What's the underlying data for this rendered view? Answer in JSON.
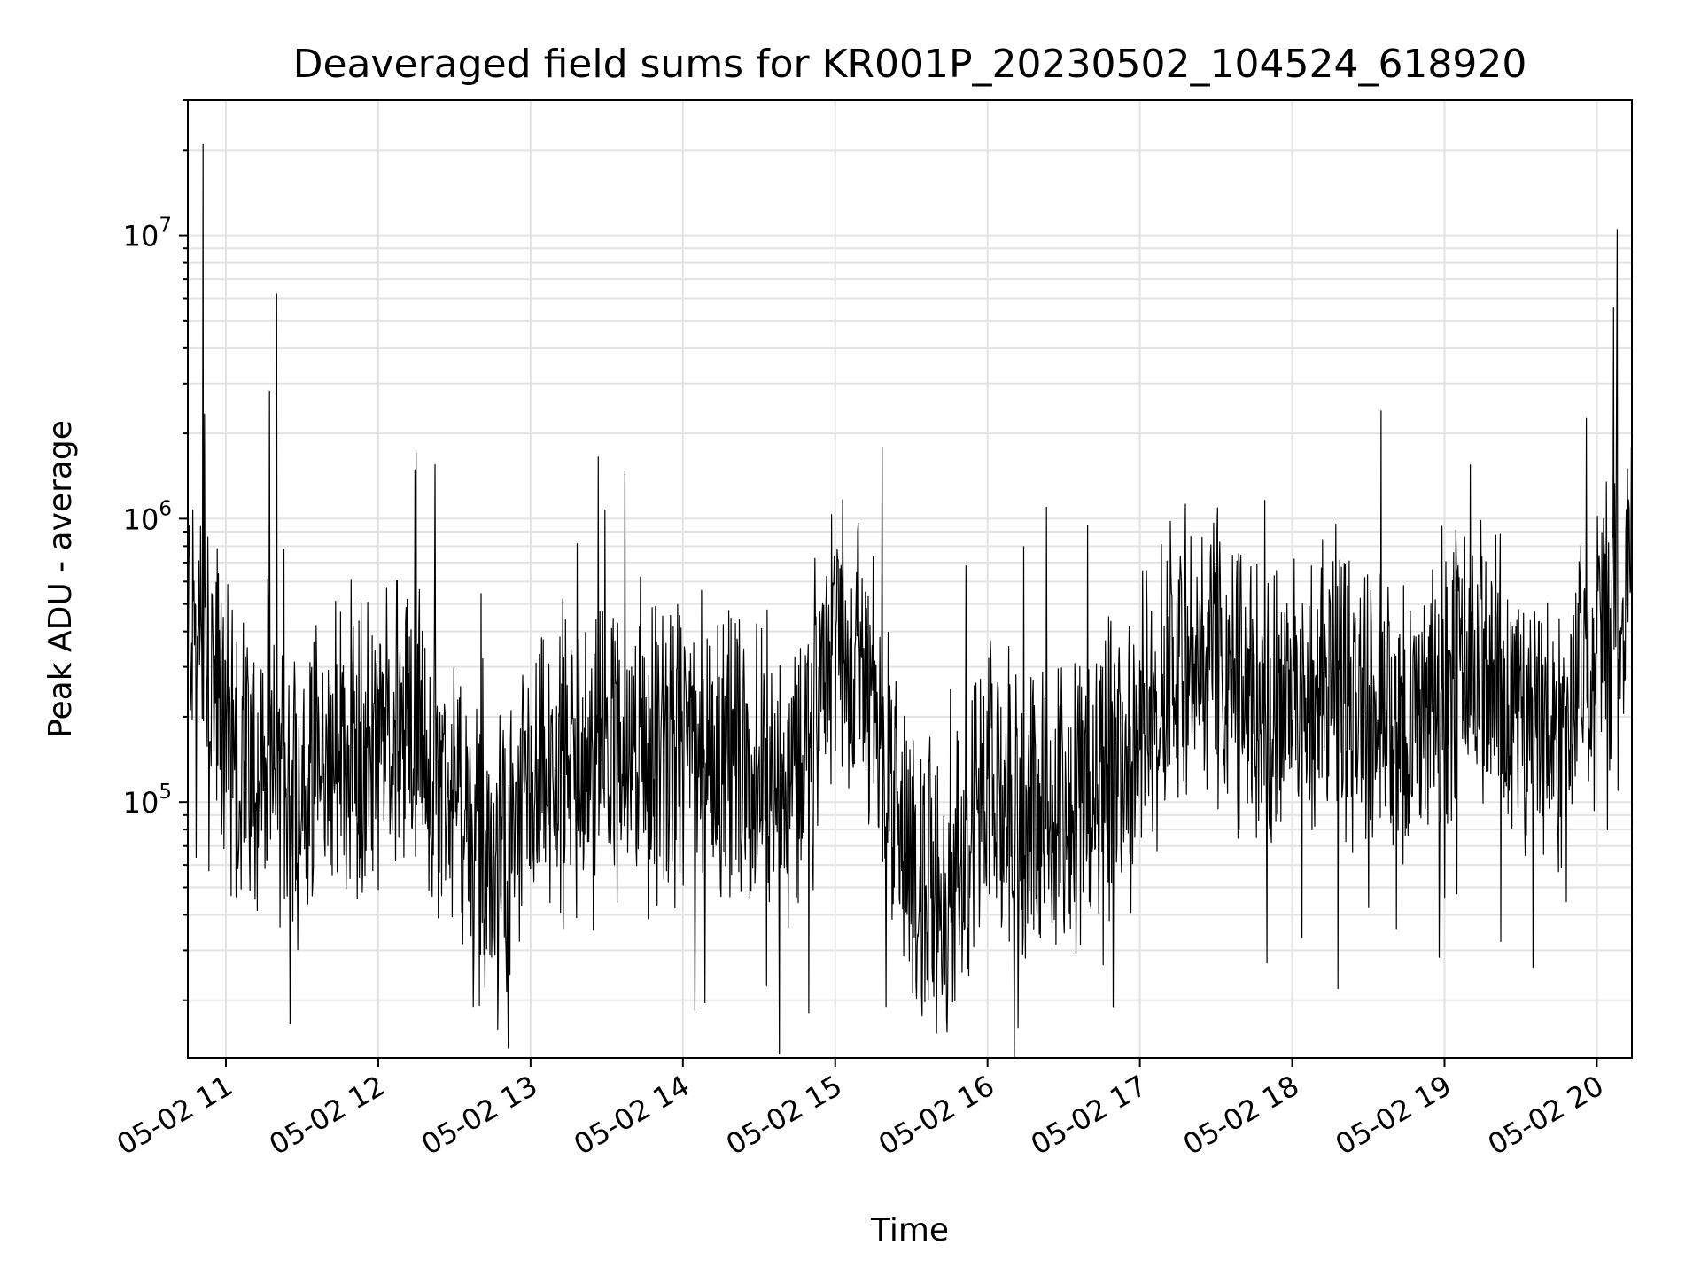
{
  "chart_data": {
    "type": "line",
    "title": "Deaveraged field sums for KR001P_20230502_104524_618920",
    "xlabel": "Time",
    "ylabel": "Peak ADU - average",
    "yscale": "log",
    "ylim": [
      12500,
      30000000
    ],
    "xlim_hours": [
      10.75,
      20.23
    ],
    "grid": true,
    "legend": "none",
    "line_color": "#000000",
    "x_ticks": [
      {
        "label": "05-02 11",
        "hour": 11
      },
      {
        "label": "05-02 12",
        "hour": 12
      },
      {
        "label": "05-02 13",
        "hour": 13
      },
      {
        "label": "05-02 14",
        "hour": 14
      },
      {
        "label": "05-02 15",
        "hour": 15
      },
      {
        "label": "05-02 16",
        "hour": 16
      },
      {
        "label": "05-02 17",
        "hour": 17
      },
      {
        "label": "05-02 18",
        "hour": 18
      },
      {
        "label": "05-02 19",
        "hour": 19
      },
      {
        "label": "05-02 20",
        "hour": 20
      }
    ],
    "y_ticks": [
      {
        "base": "10",
        "exp": "5",
        "value": 100000
      },
      {
        "base": "10",
        "exp": "6",
        "value": 1000000
      },
      {
        "base": "10",
        "exp": "7",
        "value": 10000000
      }
    ],
    "x": [
      "05-02 10:45",
      "05-02 11:00",
      "05-02 11:15",
      "05-02 11:30",
      "05-02 11:45",
      "05-02 12:00",
      "05-02 12:15",
      "05-02 12:30",
      "05-02 12:45",
      "05-02 13:00",
      "05-02 13:15",
      "05-02 13:30",
      "05-02 13:45",
      "05-02 14:00",
      "05-02 14:15",
      "05-02 14:30",
      "05-02 14:45",
      "05-02 15:00",
      "05-02 15:15",
      "05-02 15:30",
      "05-02 15:45",
      "05-02 16:00",
      "05-02 16:15",
      "05-02 16:30",
      "05-02 16:45",
      "05-02 17:00",
      "05-02 17:15",
      "05-02 17:30",
      "05-02 17:45",
      "05-02 18:00",
      "05-02 18:15",
      "05-02 18:30",
      "05-02 18:45",
      "05-02 19:00",
      "05-02 19:15",
      "05-02 19:30",
      "05-02 19:45",
      "05-02 20:00",
      "05-02 20:13"
    ],
    "y": [
      500000,
      180000,
      120000,
      100000,
      150000,
      170000,
      180000,
      100000,
      50000,
      100000,
      130000,
      150000,
      130000,
      150000,
      160000,
      130000,
      120000,
      400000,
      250000,
      50000,
      50000,
      100000,
      90000,
      90000,
      130000,
      170000,
      300000,
      350000,
      200000,
      220000,
      250000,
      200000,
      180000,
      250000,
      300000,
      200000,
      180000,
      350000,
      600000
    ],
    "peaks": [
      {
        "x": "05-02 10:51",
        "y": 21000000
      },
      {
        "x": "05-02 11:20",
        "y": 6200000
      },
      {
        "x": "05-02 18:35",
        "y": 2400000
      },
      {
        "x": "05-02 20:08",
        "y": 10500000
      }
    ],
    "troughs": [
      {
        "x": "05-02 15:20",
        "y": 19000
      },
      {
        "x": "05-02 16:12",
        "y": 16000
      },
      {
        "x": "05-02 18:18",
        "y": 22000
      }
    ]
  }
}
